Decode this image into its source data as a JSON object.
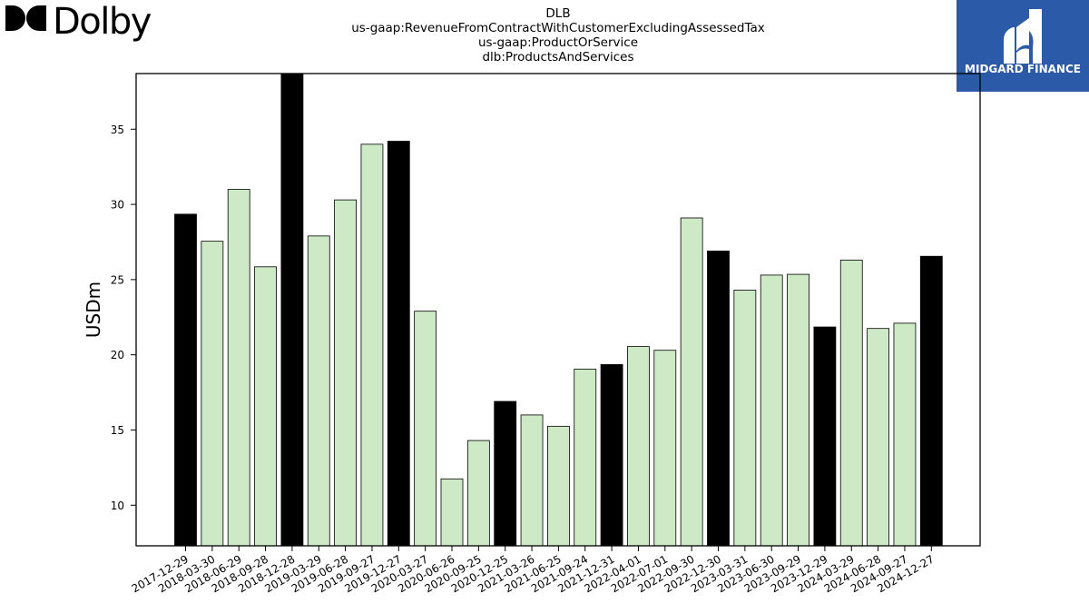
{
  "header": {
    "brand_logo": {
      "text": "Dolby",
      "icon": "dolby-double-d-icon"
    },
    "watermark_logo": {
      "text": "MIDGARD FINANCE",
      "icon": "midgard-m-icon",
      "bg_color": "#2b5aa8"
    }
  },
  "chart_data": {
    "type": "bar",
    "title_lines": [
      "DLB",
      "us-gaap:RevenueFromContractWithCustomerExcludingAssessedTax",
      "us-gaap:ProductOrService",
      "dlb:ProductsAndServices"
    ],
    "xlabel": "",
    "ylabel": "USDm",
    "ylim": [
      7.3,
      38.7
    ],
    "yticks": [
      10,
      15,
      20,
      25,
      30,
      35
    ],
    "grid": false,
    "legend": "none",
    "colors": {
      "annual": "#000000",
      "quarterly": "#cde9c6",
      "edge": "#000000"
    },
    "categories": [
      "2017-12-29",
      "2018-03-30",
      "2018-06-29",
      "2018-09-28",
      "2018-12-28",
      "2019-03-29",
      "2019-06-28",
      "2019-09-27",
      "2019-12-27",
      "2020-03-27",
      "2020-06-26",
      "2020-09-25",
      "2020-12-25",
      "2021-03-26",
      "2021-06-25",
      "2021-09-24",
      "2021-12-31",
      "2022-04-01",
      "2022-07-01",
      "2022-09-30",
      "2022-12-30",
      "2023-03-31",
      "2023-06-30",
      "2023-09-29",
      "2023-12-29",
      "2024-03-29",
      "2024-06-28",
      "2024-09-27",
      "2024-12-27"
    ],
    "values": [
      29.35,
      27.55,
      31.0,
      25.85,
      38.7,
      27.9,
      30.3,
      34.0,
      34.2,
      22.9,
      11.75,
      14.3,
      16.9,
      16.0,
      15.25,
      19.05,
      19.35,
      20.55,
      20.3,
      29.1,
      26.9,
      24.3,
      25.3,
      25.35,
      21.85,
      26.3,
      21.75,
      22.1,
      26.55
    ],
    "highlight": [
      true,
      false,
      false,
      false,
      true,
      false,
      false,
      false,
      true,
      false,
      false,
      false,
      true,
      false,
      false,
      false,
      true,
      false,
      false,
      false,
      true,
      false,
      false,
      false,
      true,
      false,
      false,
      false,
      true
    ]
  }
}
